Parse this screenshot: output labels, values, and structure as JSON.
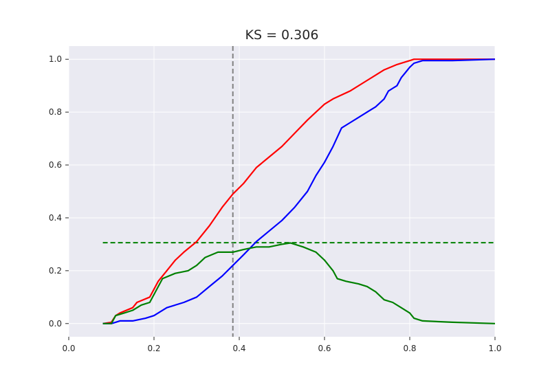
{
  "chart_data": {
    "type": "line",
    "title": "KS = 0.306",
    "xlabel": "",
    "ylabel": "",
    "xlim": [
      0.0,
      1.0
    ],
    "ylim": [
      -0.05,
      1.05
    ],
    "xticks": [
      "0.0",
      "0.2",
      "0.4",
      "0.6",
      "0.8",
      "1.0"
    ],
    "yticks": [
      "0.0",
      "0.2",
      "0.4",
      "0.6",
      "0.8",
      "1.0"
    ],
    "grid": true,
    "legend": "none",
    "background_color": "#EAEAF2",
    "grid_color": "#FFFFFF",
    "series": [
      {
        "color": "#FF0000",
        "style": "solid",
        "x": [
          0.08,
          0.1,
          0.11,
          0.12,
          0.15,
          0.16,
          0.19,
          0.2,
          0.21,
          0.23,
          0.25,
          0.27,
          0.3,
          0.33,
          0.36,
          0.385,
          0.41,
          0.44,
          0.47,
          0.5,
          0.53,
          0.56,
          0.58,
          0.6,
          0.62,
          0.66,
          0.7,
          0.72,
          0.74,
          0.77,
          0.79,
          0.8,
          0.81,
          0.85,
          1.0
        ],
        "y": [
          0.0,
          0.005,
          0.03,
          0.04,
          0.06,
          0.08,
          0.1,
          0.13,
          0.16,
          0.2,
          0.24,
          0.27,
          0.31,
          0.37,
          0.44,
          0.49,
          0.53,
          0.59,
          0.63,
          0.67,
          0.72,
          0.77,
          0.8,
          0.83,
          0.85,
          0.88,
          0.92,
          0.94,
          0.96,
          0.98,
          0.99,
          0.995,
          1.0,
          1.0,
          1.0
        ]
      },
      {
        "color": "#0000FF",
        "style": "solid",
        "x": [
          0.08,
          0.1,
          0.11,
          0.12,
          0.15,
          0.18,
          0.2,
          0.23,
          0.27,
          0.3,
          0.33,
          0.36,
          0.385,
          0.41,
          0.44,
          0.47,
          0.5,
          0.53,
          0.56,
          0.58,
          0.6,
          0.62,
          0.64,
          0.66,
          0.68,
          0.7,
          0.72,
          0.74,
          0.75,
          0.76,
          0.77,
          0.78,
          0.79,
          0.8,
          0.81,
          0.83,
          0.9,
          1.0
        ],
        "y": [
          0.0,
          0.0,
          0.005,
          0.01,
          0.01,
          0.02,
          0.03,
          0.06,
          0.08,
          0.1,
          0.14,
          0.18,
          0.22,
          0.26,
          0.31,
          0.35,
          0.39,
          0.44,
          0.5,
          0.56,
          0.61,
          0.67,
          0.74,
          0.76,
          0.78,
          0.8,
          0.82,
          0.85,
          0.88,
          0.89,
          0.9,
          0.93,
          0.95,
          0.97,
          0.985,
          0.995,
          0.995,
          1.0
        ]
      },
      {
        "color": "#008000",
        "style": "solid",
        "x": [
          0.08,
          0.1,
          0.11,
          0.13,
          0.15,
          0.17,
          0.19,
          0.2,
          0.22,
          0.25,
          0.28,
          0.3,
          0.32,
          0.35,
          0.385,
          0.41,
          0.44,
          0.47,
          0.5,
          0.52,
          0.55,
          0.58,
          0.6,
          0.62,
          0.63,
          0.65,
          0.68,
          0.7,
          0.72,
          0.74,
          0.76,
          0.78,
          0.8,
          0.81,
          0.83,
          0.9,
          1.0
        ],
        "y": [
          0.0,
          0.0,
          0.03,
          0.04,
          0.05,
          0.07,
          0.08,
          0.11,
          0.17,
          0.19,
          0.2,
          0.22,
          0.25,
          0.27,
          0.27,
          0.28,
          0.29,
          0.29,
          0.3,
          0.305,
          0.29,
          0.27,
          0.24,
          0.2,
          0.17,
          0.16,
          0.15,
          0.14,
          0.12,
          0.09,
          0.08,
          0.06,
          0.04,
          0.02,
          0.01,
          0.005,
          0.0
        ]
      }
    ],
    "reference_lines": [
      {
        "orientation": "horizontal",
        "value": 0.306,
        "color": "#008000",
        "style": "dashed",
        "x_range": [
          0.08,
          1.0
        ]
      },
      {
        "orientation": "vertical",
        "value": 0.385,
        "color": "#808080",
        "style": "dashed"
      }
    ]
  }
}
